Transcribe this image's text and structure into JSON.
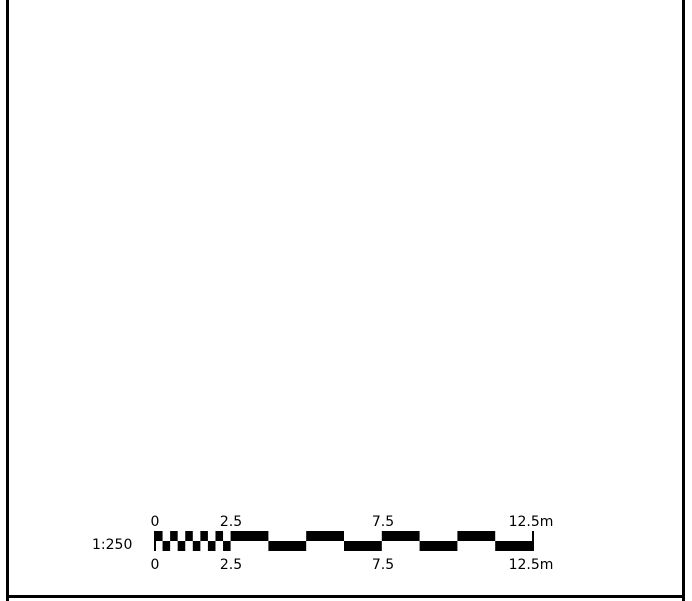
{
  "scale_ratio_label": "1:250",
  "scale_bar": {
    "top_tick_labels": [
      "0",
      "2.5",
      "7.5",
      "12.5m"
    ],
    "bottom_tick_labels": [
      "0",
      "2.5",
      "7.5",
      "12.5m"
    ],
    "unit": "m",
    "max_value": 12.5,
    "fine_subdivisions_first_segment": 10,
    "major_segment_value": 2.5,
    "colors": {
      "ink": "#000000",
      "paper": "#ffffff"
    }
  }
}
